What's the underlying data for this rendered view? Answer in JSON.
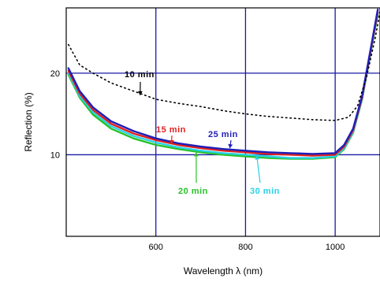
{
  "chart_data": {
    "type": "line",
    "xlabel": "Wavelength λ (nm)",
    "ylabel": "Reflection (%)",
    "xlim": [
      400,
      1100
    ],
    "ylim": [
      0,
      28
    ],
    "xticks": [
      600,
      800,
      1000
    ],
    "yticks": [
      10,
      20
    ],
    "grid": true,
    "colors": {
      "grid": "#1a1aa6",
      "frame": "#000000",
      "10 min": "#000000",
      "15 min": "#e0211d",
      "20 min": "#27c227",
      "25 min": "#1f1fb8",
      "30 min": "#2ad0e6"
    },
    "series": [
      {
        "name": "10 min",
        "style": "dotted",
        "x": [
          405,
          430,
          460,
          500,
          550,
          600,
          650,
          700,
          750,
          800,
          850,
          900,
          950,
          1000,
          1030,
          1050,
          1070,
          1090,
          1100
        ],
        "y": [
          23.5,
          21.0,
          20.0,
          18.8,
          17.8,
          16.8,
          16.3,
          15.9,
          15.4,
          15.0,
          14.7,
          14.5,
          14.3,
          14.2,
          14.6,
          16.0,
          19.5,
          24.5,
          27.5
        ]
      },
      {
        "name": "15 min",
        "style": "solid",
        "x": [
          405,
          430,
          460,
          500,
          550,
          600,
          650,
          700,
          750,
          800,
          850,
          900,
          950,
          1000,
          1020,
          1040,
          1060,
          1080,
          1095
        ],
        "y": [
          20.3,
          17.5,
          15.5,
          13.8,
          12.6,
          11.8,
          11.2,
          10.8,
          10.5,
          10.3,
          10.1,
          10.0,
          9.9,
          10.0,
          11.0,
          13.0,
          17.0,
          23.0,
          27.5
        ]
      },
      {
        "name": "20 min",
        "style": "solid",
        "x": [
          405,
          430,
          460,
          500,
          550,
          600,
          650,
          700,
          750,
          800,
          850,
          900,
          950,
          1000,
          1020,
          1040,
          1060,
          1080,
          1095
        ],
        "y": [
          19.8,
          17.0,
          14.9,
          13.2,
          12.0,
          11.2,
          10.7,
          10.3,
          10.0,
          9.8,
          9.6,
          9.5,
          9.5,
          9.7,
          10.7,
          12.7,
          16.8,
          22.8,
          27.2
        ]
      },
      {
        "name": "25 min",
        "style": "solid",
        "x": [
          405,
          430,
          460,
          500,
          550,
          600,
          650,
          700,
          750,
          800,
          850,
          900,
          950,
          1000,
          1020,
          1040,
          1060,
          1080,
          1095
        ],
        "y": [
          20.6,
          17.8,
          15.8,
          14.1,
          12.9,
          12.0,
          11.4,
          11.0,
          10.7,
          10.5,
          10.3,
          10.2,
          10.1,
          10.2,
          11.2,
          13.2,
          17.2,
          23.2,
          27.8
        ]
      },
      {
        "name": "30 min",
        "style": "solid",
        "x": [
          405,
          430,
          460,
          500,
          550,
          600,
          650,
          700,
          750,
          800,
          850,
          900,
          950,
          1000,
          1020,
          1040,
          1060,
          1080,
          1095
        ],
        "y": [
          20.0,
          17.2,
          15.2,
          13.5,
          12.3,
          11.5,
          10.9,
          10.5,
          10.2,
          10.0,
          9.8,
          9.6,
          9.6,
          9.8,
          10.8,
          12.8,
          16.9,
          22.9,
          27.4
        ]
      }
    ],
    "annotations": [
      {
        "text": "10 min",
        "series": "10 min",
        "arrow_to": [
          565,
          17.3
        ]
      },
      {
        "text": "15 min",
        "series": "15 min",
        "arrow_to": [
          635,
          11.3
        ]
      },
      {
        "text": "20 min",
        "series": "20 min",
        "arrow_to": [
          690,
          10.3
        ]
      },
      {
        "text": "25 min",
        "series": "25 min",
        "arrow_to": [
          765,
          10.8
        ]
      },
      {
        "text": "30 min",
        "series": "30 min",
        "arrow_to": [
          825,
          9.9
        ]
      }
    ]
  }
}
